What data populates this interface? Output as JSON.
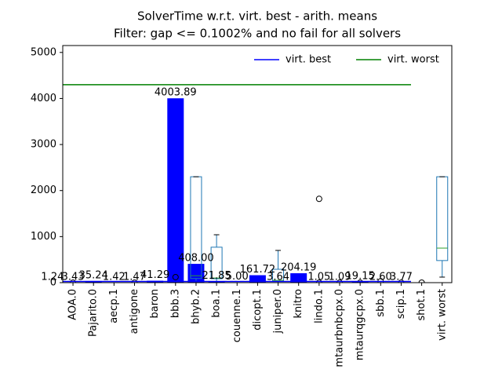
{
  "chart_data": {
    "type": "bar",
    "title": "SolverTime w.r.t. virt. best - arith. means",
    "subtitle": "Filter: gap <= 0.1002% and no fail for all solvers",
    "categories": [
      null,
      "AOA.0",
      "Pajarito.0",
      "aecp.1",
      "antigone",
      "baron",
      "bbb.3",
      "bhyb.2",
      "boa.1",
      "couenne.1",
      "dicopt.1",
      "juniper.0",
      "knitro",
      "lindo.1",
      "mtaurbnbcpx.0",
      "mtaurqgcpx.0",
      "sbb.1",
      "scip.1",
      "shot.1",
      "virt. worst"
    ],
    "values": [
      1.24,
      3.43,
      35.24,
      1.42,
      1.47,
      41.29,
      4003.89,
      408.0,
      21.85,
      5.0,
      161.72,
      3.64,
      204.19,
      1.05,
      1.09,
      19.15,
      2.6,
      3.77,
      null,
      null
    ],
    "value_labels": [
      "1.24",
      "3.43",
      "35.24",
      "1.42",
      "1.47",
      "41.29",
      "4003.89",
      "408.00",
      "21.85",
      "5.00",
      "161.72",
      "3.64",
      "204.19",
      "1.05",
      "1.09",
      "19.15",
      "2.60",
      "3.77",
      null,
      null
    ],
    "color": "#0000ff",
    "boxes": [
      {
        "index": 7,
        "min": 0,
        "q1": 90,
        "median": 150,
        "q3": 2300,
        "max": 2300
      },
      {
        "index": 8,
        "min": 0,
        "q1": 85,
        "median": 100,
        "q3": 770,
        "max": 1040
      },
      {
        "index": 11,
        "min": 0,
        "q1": 30,
        "median": 50,
        "q3": 290,
        "max": 700
      },
      {
        "index": 19,
        "min": 120,
        "q1": 480,
        "median": 750,
        "q3": 2300,
        "max": 2300
      }
    ],
    "outliers": [
      {
        "index": 1,
        "value": 0
      },
      {
        "index": 4,
        "value": 0
      },
      {
        "index": 6,
        "value": 120
      },
      {
        "index": 13,
        "value": 1820
      },
      {
        "index": 13,
        "value": 0
      },
      {
        "index": 14,
        "value": 0
      },
      {
        "index": 15,
        "value": 0
      },
      {
        "index": 16,
        "value": 30
      },
      {
        "index": 17,
        "value": 0
      },
      {
        "index": 18,
        "value": 0
      }
    ],
    "lines": [
      {
        "name": "virt. best",
        "color": "#0000ff",
        "value": 25
      },
      {
        "name": "virt. worst",
        "color": "#008000",
        "value": 4300
      }
    ],
    "ylim": [
      0,
      5150
    ],
    "yticks": [
      0,
      1000,
      2000,
      3000,
      4000,
      5000
    ],
    "legend": "upper right"
  }
}
